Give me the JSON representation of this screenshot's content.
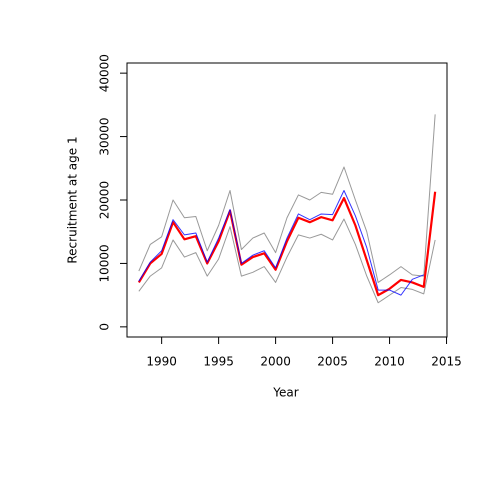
{
  "chart_data": {
    "type": "line",
    "x_label": "Year",
    "y_label": "Recruitment at age 1",
    "x": [
      1988,
      1989,
      1990,
      1991,
      1992,
      1993,
      1994,
      1995,
      1996,
      1997,
      1998,
      1999,
      2000,
      2001,
      2002,
      2003,
      2004,
      2005,
      2006,
      2007,
      2008,
      2009,
      2010,
      2011,
      2012,
      2013,
      2014
    ],
    "series": [
      {
        "color": "#999999",
        "values": [
          8800,
          13000,
          14200,
          20000,
          17200,
          17400,
          12000,
          16000,
          21500,
          12200,
          14000,
          14800,
          11700,
          17200,
          20800,
          20000,
          21200,
          20900,
          25200,
          20000,
          15000,
          7000,
          8200,
          9500,
          8200,
          8000,
          33500
        ]
      },
      {
        "color": "#999999",
        "values": [
          5600,
          8000,
          9300,
          13700,
          11000,
          11700,
          8000,
          10700,
          15800,
          8000,
          8600,
          9500,
          7000,
          11000,
          14500,
          14000,
          14600,
          13700,
          17000,
          13000,
          8000,
          3800,
          5000,
          6200,
          5900,
          5200,
          13700
        ]
      },
      {
        "color": "#ff0000",
        "values": [
          7000,
          10000,
          11500,
          16500,
          13800,
          14300,
          10000,
          13500,
          18300,
          9800,
          11000,
          11600,
          9000,
          13500,
          17200,
          16500,
          17300,
          16800,
          20300,
          16000,
          10500,
          5000,
          6000,
          7400,
          7000,
          6300,
          21300
        ]
      },
      {
        "color": "#0000ff",
        "values": [
          7200,
          10200,
          12000,
          16900,
          14500,
          14800,
          10200,
          14000,
          18500,
          10000,
          11300,
          12000,
          9300,
          14000,
          17800,
          16900,
          17800,
          17700,
          21500,
          17500,
          12500,
          5800,
          5800,
          5000,
          7500,
          8200,
          null
        ]
      }
    ],
    "xlim": [
      1986.96,
      2015.04
    ],
    "xticks": [
      1990,
      1995,
      2000,
      2005,
      2010,
      2015
    ],
    "ylim": [
      -1600,
      41600
    ],
    "yticks": [
      0,
      10000,
      20000,
      30000,
      40000
    ]
  }
}
